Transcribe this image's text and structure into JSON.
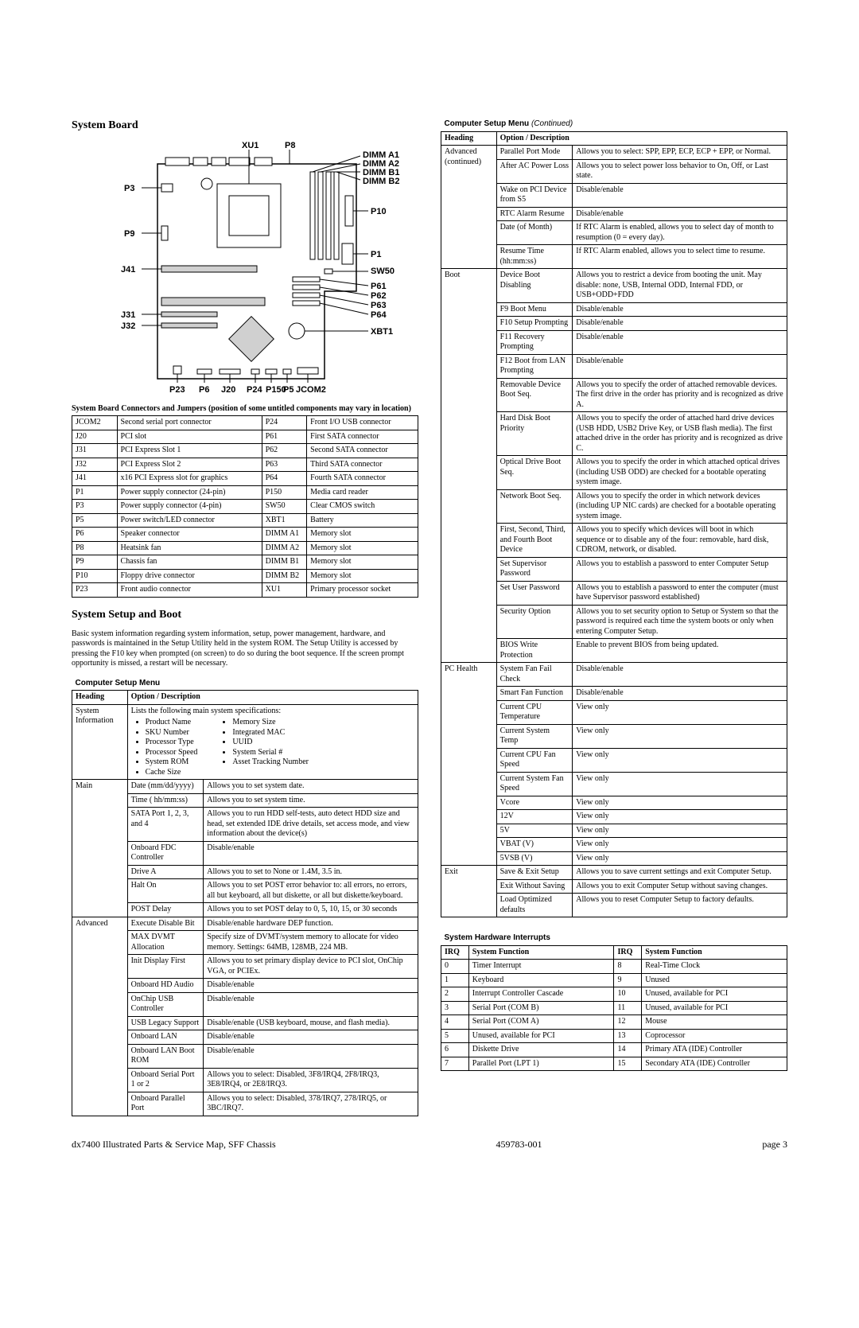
{
  "section_titles": {
    "system_board": "System Board",
    "system_setup": "System Setup and Boot"
  },
  "body_text": "Basic system information regarding system information, setup, power management, hardware, and passwords is maintained in the Setup Utility held in the system ROM. The Setup Utility is accessed by pressing the F10 key when prompted (on screen) to do so during the boot sequence. If the screen prompt opportunity is missed, a restart will be necessary.",
  "connectors_caption": "System Board Connectors and Jumpers (position of some untitled components may vary in location)",
  "connectors_table": {
    "rows": [
      [
        "JCOM2",
        "Second serial port connector",
        "P24",
        "Front I/O USB connector"
      ],
      [
        "J20",
        "PCI slot",
        "P61",
        "First SATA connector"
      ],
      [
        "J31",
        "PCI Express Slot 1",
        "P62",
        "Second SATA connector"
      ],
      [
        "J32",
        "PCI Express Slot 2",
        "P63",
        "Third SATA connector"
      ],
      [
        "J41",
        "x16 PCI Express slot for graphics",
        "P64",
        "Fourth SATA connector"
      ],
      [
        "P1",
        "Power supply connector (24-pin)",
        "P150",
        "Media card reader"
      ],
      [
        "P3",
        "Power supply connector (4-pin)",
        "SW50",
        "Clear CMOS switch"
      ],
      [
        "P5",
        "Power switch/LED connector",
        "XBT1",
        "Battery"
      ],
      [
        "P6",
        "Speaker connector",
        "DIMM A1",
        "Memory slot"
      ],
      [
        "P8",
        "Heatsink fan",
        "DIMM A2",
        "Memory slot"
      ],
      [
        "P9",
        "Chassis fan",
        "DIMM B1",
        "Memory slot"
      ],
      [
        "P10",
        "Floppy drive connector",
        "DIMM B2",
        "Memory slot"
      ],
      [
        "P23",
        "Front audio connector",
        "XU1",
        "Primary processor socket"
      ]
    ]
  },
  "setup_menu": {
    "title_label": "Computer Setup Menu",
    "continued_label": " (Continued)",
    "heading_label": "Heading",
    "option_label": "Option / Description",
    "sys_info": {
      "heading": "System Information",
      "intro": "Lists the following main system specifications:",
      "col1": [
        "Product Name",
        "SKU Number",
        "Processor Type",
        "Processor Speed",
        "System ROM",
        "Cache Size"
      ],
      "col2": [
        "Memory Size",
        "Integrated MAC",
        "UUID",
        "System Serial #",
        "Asset Tracking Number"
      ]
    },
    "main": {
      "heading": "Main",
      "rows": [
        [
          "Date (mm/dd/yyyy)",
          "Allows you to set system date."
        ],
        [
          "Time ( hh/mm:ss)",
          "Allows you to set system time."
        ],
        [
          "SATA Port 1, 2, 3, and 4",
          "Allows you to run HDD self-tests, auto detect HDD size and head, set extended IDE drive details, set access mode, and view information about the device(s)"
        ],
        [
          "Onboard FDC Controller",
          "Disable/enable"
        ],
        [
          "Drive A",
          "Allows you to set to None or 1.4M, 3.5 in."
        ],
        [
          "Halt On",
          "Allows you to set POST error behavior to: all errors, no errors, all but keyboard, all but diskette, or all but diskette/keyboard."
        ],
        [
          "POST Delay",
          "Allows you to set POST delay to 0, 5, 10, 15, or 30 seconds"
        ]
      ]
    },
    "advanced": {
      "heading": "Advanced",
      "rows": [
        [
          "Execute Disable Bit",
          "Disable/enable hardware DEP function."
        ],
        [
          "MAX DVMT Allocation",
          "Specify size of DVMT/system memory to allocate for video memory. Settings: 64MB, 128MB, 224 MB."
        ],
        [
          "Init Display First",
          "Allows you to set primary display device to PCI slot, OnChip VGA, or PCIEx."
        ],
        [
          "Onboard HD Audio",
          "Disable/enable"
        ],
        [
          "OnChip USB Controller",
          "Disable/enable"
        ],
        [
          "USB Legacy Support",
          "Disable/enable (USB keyboard, mouse, and flash media)."
        ],
        [
          "Onboard LAN",
          "Disable/enable"
        ],
        [
          "Onboard LAN Boot ROM",
          "Disable/enable"
        ],
        [
          "Onboard Serial Port 1 or 2",
          "Allows you to select: Disabled, 3F8/IRQ4, 2F8/IRQ3, 3E8/IRQ4, or 2E8/IRQ3."
        ],
        [
          "Onboard Parallel Port",
          "Allows you to select: Disabled, 378/IRQ7, 278/IRQ5, or 3BC/IRQ7."
        ]
      ]
    },
    "advanced_cont": {
      "heading": "Advanced (continued)",
      "rows": [
        [
          "Parallel Port Mode",
          "Allows you to select: SPP, EPP, ECP, ECP + EPP, or Normal."
        ],
        [
          "After AC Power Loss",
          "Allows you to select power loss behavior to On, Off, or Last state."
        ],
        [
          "Wake on PCI Device from S5",
          "Disable/enable"
        ],
        [
          "RTC Alarm Resume",
          "Disable/enable"
        ],
        [
          "Date (of Month)",
          "If RTC Alarm is enabled, allows you to select day of month to resumption (0 = every day)."
        ],
        [
          "Resume Time (hh:mm:ss)",
          "If RTC Alarm enabled, allows you to select time to resume."
        ]
      ]
    },
    "boot": {
      "heading": "Boot",
      "rows": [
        [
          "Device Boot Disabling",
          "Allows you to restrict a device from booting the unit. May disable: none, USB, Internal ODD, Internal FDD, or USB+ODD+FDD"
        ],
        [
          "F9 Boot Menu",
          "Disable/enable"
        ],
        [
          "F10 Setup Prompting",
          "Disable/enable"
        ],
        [
          "F11 Recovery Prompting",
          "Disable/enable"
        ],
        [
          "F12 Boot from LAN Prompting",
          "Disable/enable"
        ],
        [
          "Removable Device Boot Seq.",
          "Allows you to specify the order of attached removable devices. The first drive in the order has priority and is recognized as drive A."
        ],
        [
          "Hard Disk Boot Priority",
          "Allows you to specify the order of attached hard drive devices (USB HDD, USB2 Drive Key, or USB flash media). The first attached drive in the order has priority and is recognized as drive C."
        ],
        [
          "Optical Drive Boot Seq.",
          "Allows you to specify the order in which attached optical drives (including USB ODD) are checked for a bootable operating system image."
        ],
        [
          "Network Boot Seq.",
          "Allows you to specify the order in which network devices (including UP NIC cards) are checked for a bootable operating system image."
        ],
        [
          "First, Second, Third, and Fourth Boot Device",
          "Allows you to specify which devices will boot in which sequence or to disable any of the four: removable, hard disk, CDROM, network, or disabled."
        ],
        [
          "Set Supervisor Password",
          "Allows you to establish a password to enter Computer Setup"
        ],
        [
          "Set User Password",
          "Allows you to establish a password to enter the computer (must have Supervisor password established)"
        ],
        [
          "Security Option",
          " Allows you to set security option to Setup or System so that the password is required each time the system boots or only when entering Computer Setup."
        ],
        [
          "BIOS Write Protection",
          "Enable to prevent BIOS from being updated."
        ]
      ]
    },
    "pc_health": {
      "heading": "PC Health",
      "rows": [
        [
          "System Fan Fail Check",
          "Disable/enable"
        ],
        [
          "Smart Fan Function",
          "Disable/enable"
        ],
        [
          "Current CPU Temperature",
          "View only"
        ],
        [
          "Current System Temp",
          "View only"
        ],
        [
          "Current CPU Fan Speed",
          "View only"
        ],
        [
          "Current System Fan Speed",
          "View only"
        ],
        [
          "Vcore",
          "View only"
        ],
        [
          "12V",
          "View only"
        ],
        [
          "5V",
          "View only"
        ],
        [
          "VBAT (V)",
          "View only"
        ],
        [
          "5VSB (V)",
          "View only"
        ]
      ]
    },
    "exit": {
      "heading": "Exit",
      "rows": [
        [
          "Save & Exit Setup",
          "Allows you to save current settings and exit Computer Setup."
        ],
        [
          "Exit Without Saving",
          "Allows you to  exit Computer Setup without saving changes."
        ],
        [
          "Load Optimized defaults",
          "Allows you to reset Computer Setup to factory defaults."
        ]
      ]
    }
  },
  "irq_table": {
    "title": "System Hardware Interrupts",
    "irq_label": "IRQ",
    "func_label": "System Function",
    "rows": [
      [
        "0",
        "Timer Interrupt",
        "8",
        "Real-Time Clock"
      ],
      [
        "1",
        "Keyboard",
        "9",
        "Unused"
      ],
      [
        "2",
        "Interrupt Controller Cascade",
        "10",
        "Unused, available for PCI"
      ],
      [
        "3",
        "Serial Port (COM B)",
        "11",
        "Unused, available for PCI"
      ],
      [
        "4",
        "Serial Port (COM A)",
        "12",
        "Mouse"
      ],
      [
        "5",
        "Unused, available for PCI",
        "13",
        "Coprocessor"
      ],
      [
        "6",
        "Diskette Drive",
        "14",
        "Primary ATA (IDE) Controller"
      ],
      [
        "7",
        "Parallel Port (LPT 1)",
        "15",
        "Secondary ATA (IDE) Controller"
      ]
    ]
  },
  "footer": {
    "left": "dx7400 Illustrated Parts & Service Map, SFF Chassis",
    "center": "459783-001",
    "right": "page 3"
  },
  "board_labels": {
    "top": [
      "XU1",
      "P8",
      "DIMM A1",
      "DIMM A2",
      "DIMM B1",
      "DIMM B2"
    ],
    "right": [
      "P10",
      "P1",
      "SW50",
      "P61",
      "P62",
      "P63",
      "P64",
      "XBT1"
    ],
    "left": [
      "P3",
      "P9",
      "J41",
      "J31",
      "J32"
    ],
    "bottom": [
      "P23",
      "P6",
      "J20",
      "P24",
      "P150",
      "P5",
      "JCOM2"
    ]
  }
}
